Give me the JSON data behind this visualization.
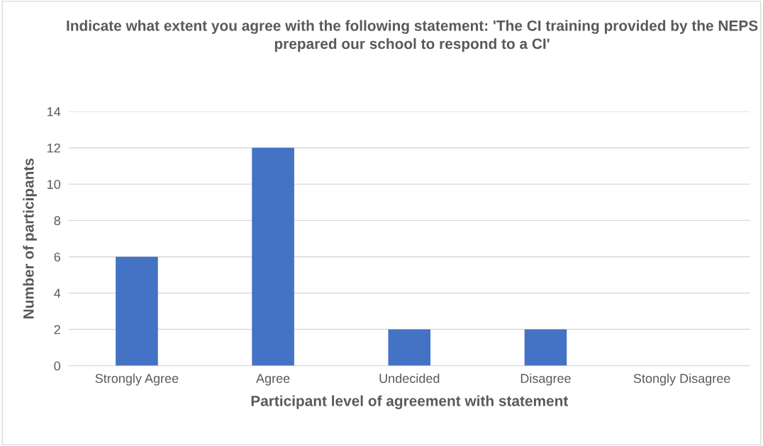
{
  "chart_data": {
    "type": "bar",
    "title": "Indicate what extent you agree with the following statement: 'The CI training provided by the NEPS prepared our school to respond to a CI'",
    "xlabel": "Participant level of agreement with statement",
    "ylabel": "Number of participants",
    "categories": [
      "Strongly Agree",
      "Agree",
      "Undecided",
      "Disagree",
      "Stongly Disagree"
    ],
    "values": [
      6,
      12,
      2,
      2,
      0
    ],
    "color": "#4472c4",
    "ylim": [
      0,
      14
    ],
    "yticks": [
      0,
      2,
      4,
      6,
      8,
      10,
      12,
      14
    ],
    "grid": "y",
    "legend": false
  }
}
